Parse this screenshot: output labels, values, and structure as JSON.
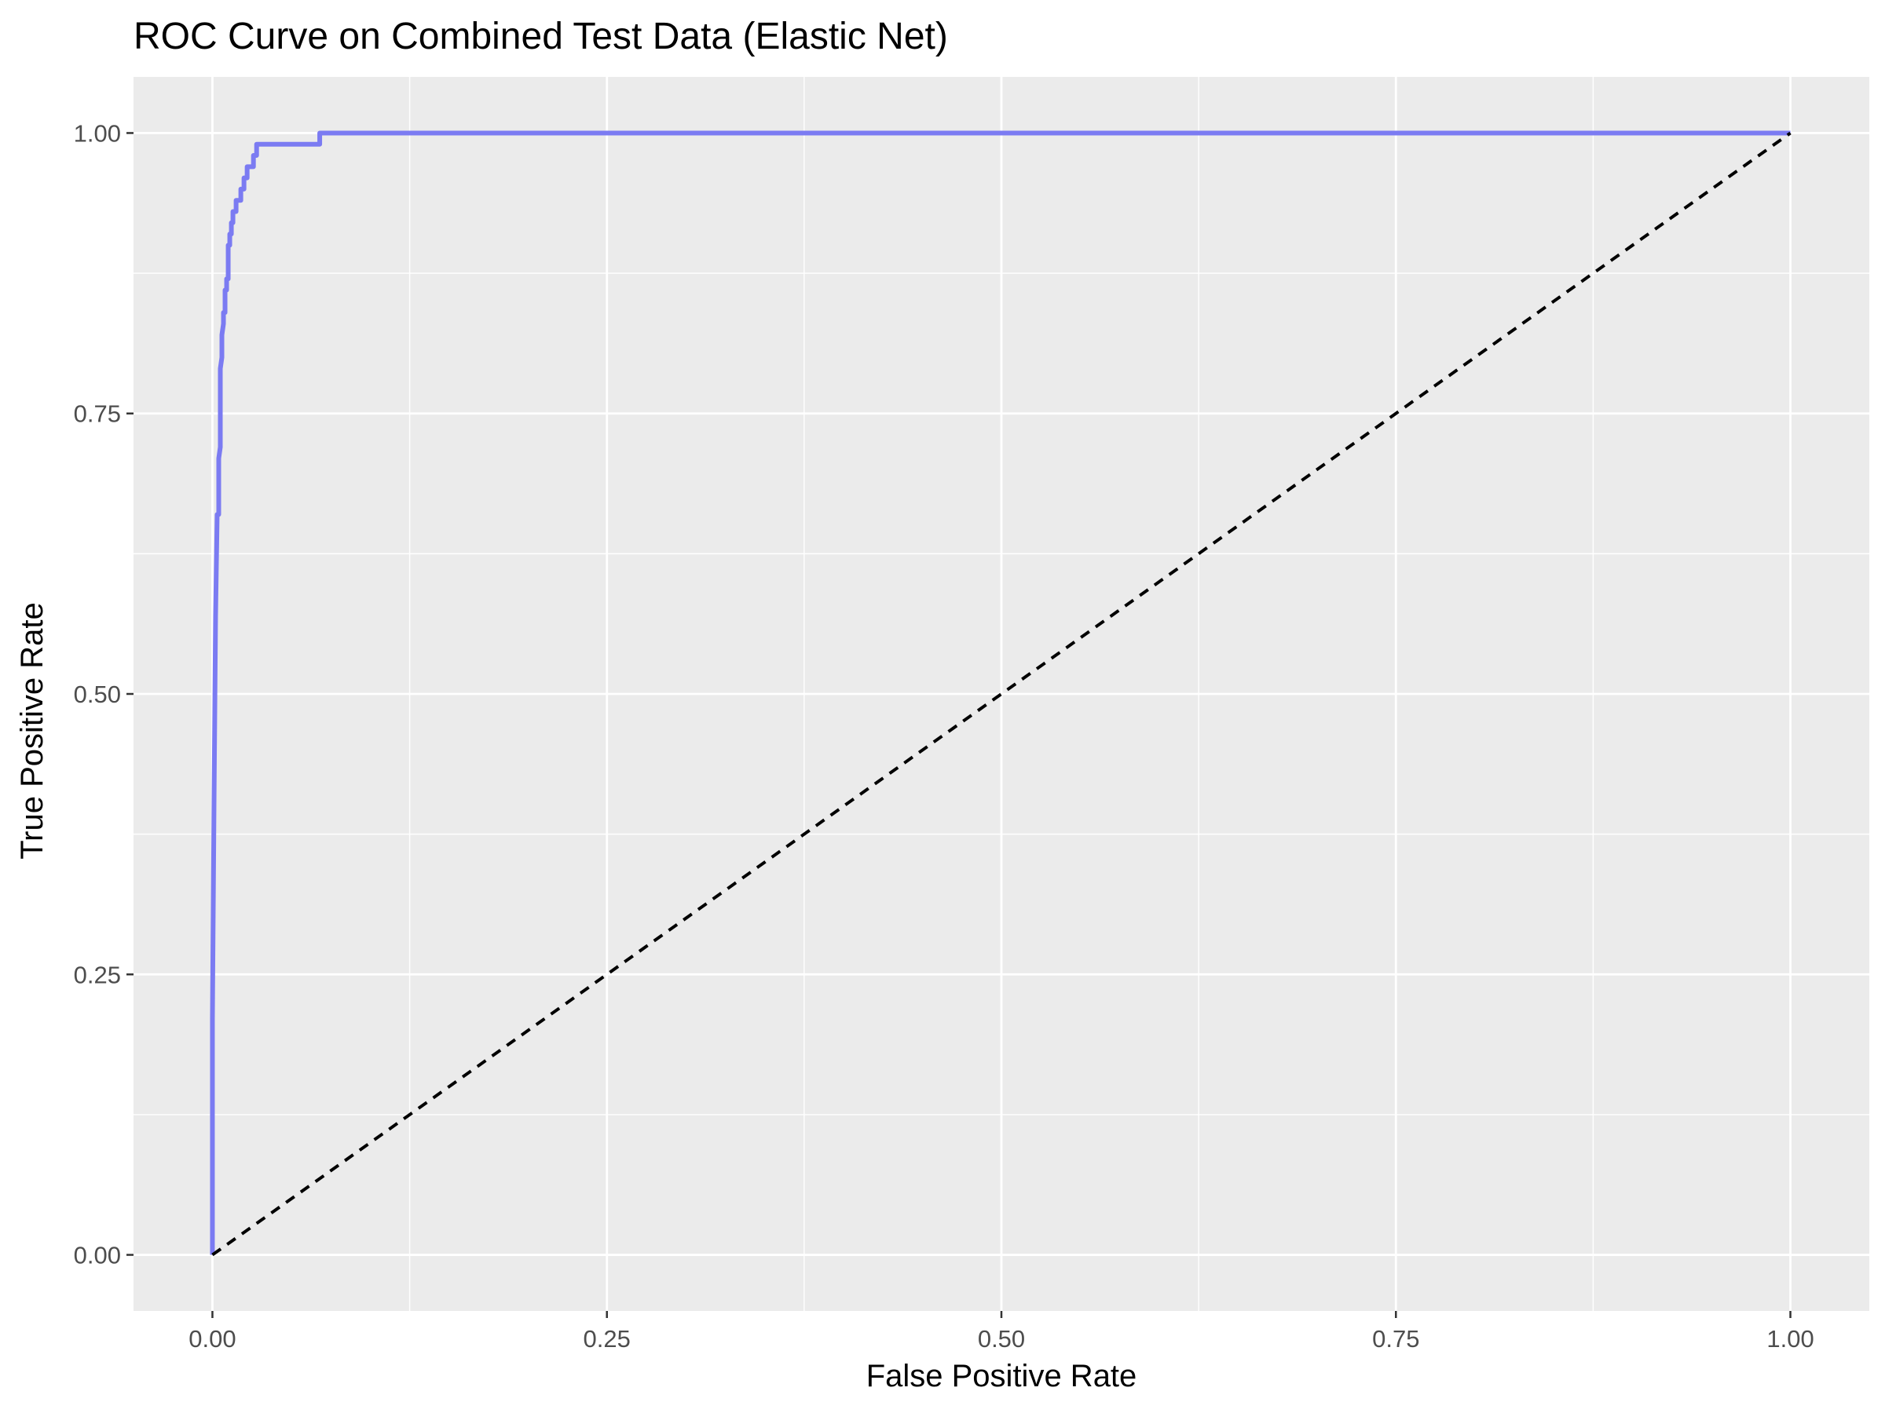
{
  "chart_data": {
    "type": "line",
    "title": "ROC Curve on Combined Test Data (Elastic Net)",
    "xlabel": "False Positive Rate",
    "ylabel": "True Positive Rate",
    "xlim": [
      -0.05,
      1.05
    ],
    "ylim": [
      -0.05,
      1.05
    ],
    "x_ticks": [
      0,
      0.25,
      0.5,
      0.75,
      1
    ],
    "x_tick_labels": [
      "0.00",
      "0.25",
      "0.50",
      "0.75",
      "1.00"
    ],
    "y_ticks": [
      0,
      0.25,
      0.5,
      0.75,
      1
    ],
    "y_tick_labels": [
      "0.00",
      "0.25",
      "0.50",
      "0.75",
      "1.00"
    ],
    "grid": true,
    "legend": "none",
    "series": [
      {
        "color": "#7b7bf2",
        "style": "solid",
        "x": [
          0,
          0,
          0.001,
          0.002,
          0.003,
          0.004,
          0.004,
          0.005,
          0.005,
          0.006,
          0.006,
          0.007,
          0.007,
          0.008,
          0.008,
          0.009,
          0.009,
          0.01,
          0.01,
          0.011,
          0.011,
          0.012,
          0.012,
          0.013,
          0.013,
          0.015,
          0.015,
          0.018,
          0.018,
          0.02,
          0.02,
          0.022,
          0.022,
          0.026,
          0.026,
          0.028,
          0.028,
          0.068,
          0.068,
          1
        ],
        "y": [
          0,
          0.21,
          0.4,
          0.57,
          0.66,
          0.66,
          0.71,
          0.72,
          0.79,
          0.8,
          0.82,
          0.83,
          0.84,
          0.84,
          0.86,
          0.86,
          0.87,
          0.87,
          0.9,
          0.9,
          0.91,
          0.91,
          0.92,
          0.92,
          0.93,
          0.93,
          0.94,
          0.94,
          0.95,
          0.95,
          0.96,
          0.96,
          0.97,
          0.97,
          0.98,
          0.98,
          0.99,
          0.99,
          1,
          1
        ]
      },
      {
        "color": "#000000",
        "style": "dashed",
        "x": [
          0,
          1
        ],
        "y": [
          0,
          1
        ]
      }
    ]
  },
  "colors": {
    "panel_background": "#ebebeb",
    "grid": "#ffffff",
    "roc_curve": "#7b7bf2",
    "reference_line": "#000000",
    "tick_text": "#4d4d4d"
  }
}
